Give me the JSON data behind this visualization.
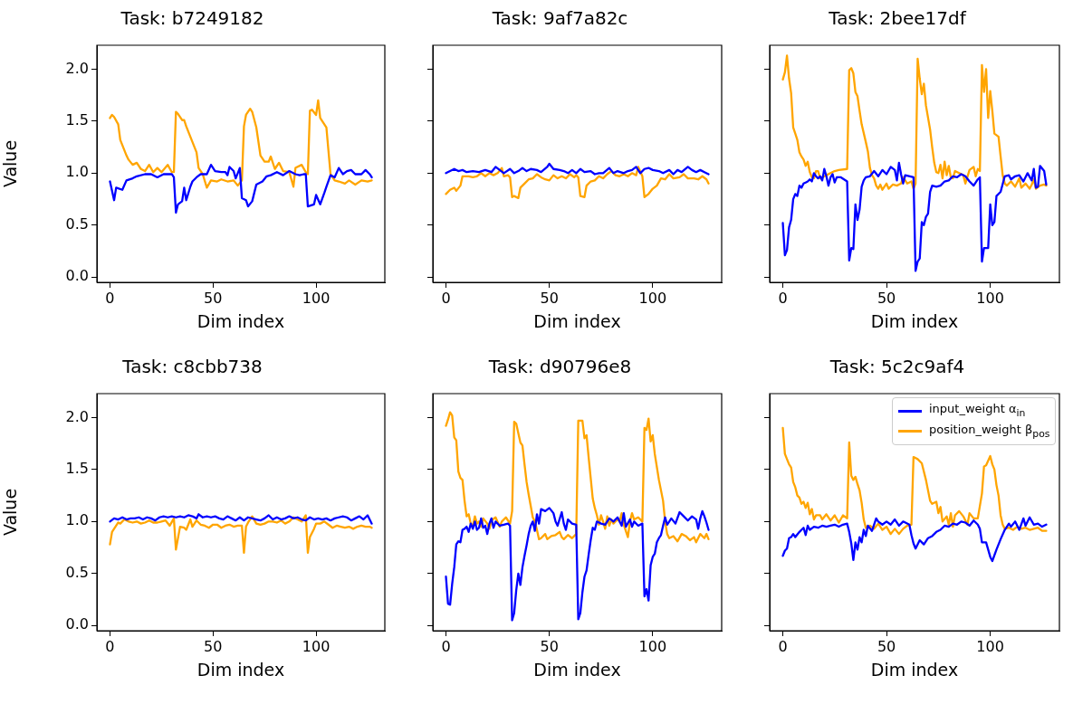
{
  "chart_data": [
    {
      "type": "line",
      "title": "Task: b7249182",
      "xlabel": "Dim index",
      "ylabel": "Value",
      "xlim": [
        -6.35,
        133.35
      ],
      "xticks": [
        0,
        50,
        100
      ],
      "ylim": [
        -0.05,
        2.23
      ],
      "yticks": [
        {
          "value": 0,
          "label": "0.0"
        },
        {
          "value": 0.5,
          "label": "0.5"
        },
        {
          "value": 1,
          "label": "1.0"
        },
        {
          "value": 1.5,
          "label": "1.5"
        },
        {
          "value": 2,
          "label": "2.0"
        }
      ],
      "grid": false,
      "legend": false,
      "series": [
        {
          "color": "#0000ff",
          "x": [
            0,
            2,
            3,
            6,
            8,
            11,
            13,
            17,
            20,
            23,
            26,
            30,
            31,
            32,
            33,
            35,
            36,
            37,
            39,
            40,
            42,
            44,
            47,
            49,
            51,
            54,
            56,
            57,
            58,
            60,
            61,
            63,
            64,
            66,
            67,
            69,
            71,
            74,
            76,
            78,
            81,
            84,
            87,
            90,
            92,
            94,
            95,
            96,
            99,
            100,
            102,
            104,
            105,
            107,
            109,
            111,
            113,
            115,
            117,
            119,
            122,
            124,
            126,
            127
          ],
          "values": [
            0.92,
            0.74,
            0.86,
            0.84,
            0.93,
            0.95,
            0.97,
            0.99,
            0.99,
            0.96,
            0.99,
            0.99,
            0.96,
            0.62,
            0.7,
            0.73,
            0.86,
            0.74,
            0.87,
            0.92,
            0.96,
            0.99,
            0.99,
            1.08,
            1.02,
            1.01,
            1.01,
            0.98,
            1.06,
            1.02,
            0.95,
            1.05,
            0.76,
            0.74,
            0.68,
            0.73,
            0.89,
            0.92,
            0.97,
            0.98,
            1.01,
            0.98,
            1.02,
            0.99,
            0.98,
            0.99,
            0.99,
            0.68,
            0.7,
            0.79,
            0.7,
            0.81,
            0.87,
            0.98,
            0.96,
            1.05,
            0.99,
            1.02,
            1.03,
            0.99,
            0.99,
            1.03,
            0.99,
            0.96
          ]
        },
        {
          "color": "#ffa500",
          "x": [
            0,
            1,
            2,
            4,
            5,
            6,
            8,
            9,
            11,
            13,
            15,
            17,
            19,
            21,
            23,
            25,
            28,
            30,
            31,
            32,
            33,
            35,
            36,
            37,
            39,
            40,
            42,
            43,
            45,
            47,
            49,
            52,
            54,
            57,
            60,
            62,
            64,
            65,
            66,
            68,
            69,
            71,
            73,
            75,
            77,
            78,
            80,
            82,
            84,
            87,
            89,
            90,
            93,
            95,
            96,
            97,
            98,
            100,
            101,
            102,
            103,
            105,
            107,
            109,
            111,
            114,
            116,
            119,
            122,
            125,
            127
          ],
          "values": [
            1.53,
            1.56,
            1.54,
            1.47,
            1.32,
            1.27,
            1.17,
            1.13,
            1.08,
            1.1,
            1.04,
            1.02,
            1.08,
            1.01,
            1.05,
            1.01,
            1.08,
            1.01,
            1.01,
            1.59,
            1.57,
            1.51,
            1.51,
            1.45,
            1.35,
            1.3,
            1.2,
            1.05,
            0.99,
            0.86,
            0.93,
            0.92,
            0.94,
            0.92,
            0.93,
            0.88,
            0.93,
            1.45,
            1.56,
            1.62,
            1.59,
            1.44,
            1.17,
            1.11,
            1.11,
            1.16,
            1.04,
            1.1,
            1.02,
            1.01,
            0.87,
            1.05,
            1.08,
            1.01,
            0.99,
            1.6,
            1.61,
            1.56,
            1.7,
            1.53,
            1.5,
            1.44,
            0.99,
            0.93,
            0.92,
            0.9,
            0.93,
            0.89,
            0.93,
            0.92,
            0.93
          ]
        }
      ]
    },
    {
      "type": "line",
      "title": "Task: 9af7a82c",
      "xlabel": "Dim index",
      "xlim": [
        -6.35,
        133.35
      ],
      "xticks": [
        0,
        50,
        100
      ],
      "ylim": [
        -0.05,
        2.23
      ],
      "yticks": [
        {
          "value": 0,
          "label": null
        },
        {
          "value": 0.5,
          "label": null
        },
        {
          "value": 1,
          "label": null
        },
        {
          "value": 1.5,
          "label": null
        },
        {
          "value": 2,
          "label": null
        }
      ],
      "tick_labels": "x",
      "grid": false,
      "legend": false,
      "series": [
        {
          "color": "#0000ff",
          "x": [
            0,
            2,
            4,
            6,
            8,
            10,
            13,
            16,
            19,
            22,
            24,
            26,
            28,
            31,
            33,
            35,
            37,
            39,
            41,
            44,
            46,
            49,
            50,
            52,
            55,
            57,
            59,
            61,
            63,
            65,
            67,
            70,
            72,
            74,
            76,
            79,
            81,
            83,
            86,
            88,
            90,
            92,
            94,
            96,
            98,
            100,
            103,
            105,
            108,
            110,
            112,
            114,
            117,
            119,
            121,
            123,
            125,
            127
          ],
          "values": [
            1.0,
            1.02,
            1.04,
            1.02,
            1.03,
            1.01,
            1.02,
            1.01,
            1.03,
            1.01,
            1.06,
            1.03,
            1.0,
            1.04,
            1.0,
            1.02,
            1.05,
            1.02,
            1.04,
            1.03,
            1.01,
            1.06,
            1.09,
            1.04,
            1.03,
            1.02,
            1.0,
            1.03,
            1.0,
            1.04,
            1.01,
            1.02,
            0.99,
            1.0,
            1.0,
            1.05,
            1.0,
            1.02,
            1.0,
            1.02,
            1.03,
            1.06,
            1.0,
            1.04,
            1.05,
            1.03,
            1.02,
            1.0,
            1.03,
            0.99,
            1.03,
            1.01,
            1.06,
            1.03,
            1.01,
            1.03,
            1.01,
            0.99
          ]
        },
        {
          "color": "#ffa500",
          "x": [
            0,
            2,
            4,
            5,
            7,
            8,
            11,
            13,
            15,
            17,
            19,
            21,
            23,
            25,
            27,
            28,
            30,
            31,
            32,
            33,
            35,
            36,
            38,
            40,
            42,
            44,
            46,
            48,
            50,
            52,
            54,
            56,
            58,
            60,
            62,
            63,
            64,
            65,
            67,
            68,
            70,
            72,
            74,
            76,
            78,
            80,
            82,
            84,
            86,
            88,
            90,
            92,
            93,
            95,
            96,
            98,
            100,
            102,
            104,
            106,
            108,
            110,
            113,
            115,
            117,
            120,
            122,
            124,
            126,
            127
          ],
          "values": [
            0.8,
            0.84,
            0.86,
            0.83,
            0.88,
            0.97,
            0.97,
            0.96,
            0.97,
            1.0,
            0.97,
            1.0,
            0.98,
            1.0,
            1.05,
            0.97,
            0.98,
            0.96,
            0.77,
            0.78,
            0.76,
            0.86,
            0.9,
            0.94,
            0.95,
            0.99,
            0.96,
            0.94,
            0.93,
            0.98,
            0.95,
            0.97,
            0.95,
            0.99,
            0.96,
            0.98,
            0.96,
            0.78,
            0.77,
            0.88,
            0.92,
            0.93,
            0.97,
            0.95,
            0.99,
            1.02,
            0.98,
            0.97,
            0.99,
            0.97,
            1.0,
            0.98,
            1.06,
            0.97,
            0.77,
            0.8,
            0.85,
            0.88,
            0.95,
            0.94,
            0.99,
            0.95,
            0.96,
            0.99,
            0.95,
            0.95,
            0.94,
            0.97,
            0.94,
            0.9
          ]
        }
      ]
    },
    {
      "type": "line",
      "title": "Task: 2bee17df",
      "xlabel": "Dim index",
      "xlim": [
        -6.35,
        133.35
      ],
      "xticks": [
        0,
        50,
        100
      ],
      "ylim": [
        -0.05,
        2.23
      ],
      "yticks": [
        {
          "value": 0,
          "label": null
        },
        {
          "value": 0.5,
          "label": null
        },
        {
          "value": 1,
          "label": null
        },
        {
          "value": 1.5,
          "label": null
        },
        {
          "value": 2,
          "label": null
        }
      ],
      "tick_labels": "x",
      "grid": false,
      "legend": false,
      "series": [
        {
          "color": "#0000ff",
          "x": [
            0,
            1,
            2,
            3,
            4,
            5,
            6,
            7,
            8,
            9,
            10,
            11,
            12,
            13,
            14,
            15,
            16,
            17,
            18,
            19,
            20,
            21,
            22,
            23,
            24,
            25,
            26,
            28,
            31,
            32,
            33,
            34,
            35,
            36,
            37,
            38,
            39,
            40,
            42,
            44,
            46,
            48,
            50,
            52,
            54,
            55,
            56,
            57,
            58,
            59,
            63,
            64,
            65,
            66,
            67,
            68,
            69,
            70,
            71,
            72,
            74,
            76,
            78,
            80,
            82,
            84,
            86,
            88,
            90,
            92,
            94,
            95,
            96,
            97,
            99,
            100,
            101,
            102,
            103,
            105,
            107,
            109,
            110,
            112,
            114,
            116,
            118,
            120,
            121,
            122,
            123,
            124,
            126,
            127
          ],
          "values": [
            0.52,
            0.21,
            0.26,
            0.48,
            0.55,
            0.75,
            0.8,
            0.78,
            0.88,
            0.86,
            0.9,
            0.91,
            0.92,
            0.94,
            0.92,
            1.0,
            0.97,
            0.95,
            0.97,
            0.93,
            1.04,
            0.97,
            0.88,
            0.96,
            0.99,
            0.91,
            0.96,
            0.96,
            0.92,
            0.16,
            0.28,
            0.27,
            0.7,
            0.55,
            0.65,
            0.87,
            0.93,
            0.96,
            0.97,
            1.02,
            0.97,
            1.03,
            0.99,
            1.06,
            1.03,
            0.93,
            1.1,
            0.99,
            0.9,
            0.98,
            0.96,
            0.06,
            0.15,
            0.18,
            0.53,
            0.5,
            0.58,
            0.61,
            0.82,
            0.88,
            0.87,
            0.88,
            0.92,
            0.93,
            0.97,
            0.96,
            0.99,
            0.97,
            0.92,
            0.88,
            0.94,
            0.96,
            0.15,
            0.28,
            0.28,
            0.7,
            0.5,
            0.53,
            0.78,
            0.82,
            0.97,
            0.98,
            0.94,
            0.97,
            0.98,
            0.92,
            1.0,
            0.93,
            1.04,
            0.86,
            0.87,
            1.07,
            1.02,
            0.89
          ]
        },
        {
          "color": "#ffa500",
          "x": [
            0,
            1,
            2,
            3,
            4,
            5,
            6,
            7,
            8,
            9,
            10,
            11,
            12,
            13,
            14,
            15,
            16,
            17,
            18,
            19,
            21,
            23,
            25,
            27,
            31,
            32,
            33,
            34,
            35,
            36,
            37,
            38,
            40,
            41,
            42,
            43,
            44,
            45,
            46,
            47,
            48,
            50,
            51,
            53,
            55,
            57,
            58,
            60,
            62,
            63,
            64,
            65,
            66,
            67,
            68,
            69,
            71,
            72,
            73,
            74,
            75,
            76,
            77,
            78,
            79,
            80,
            81,
            82,
            83,
            85,
            87,
            88,
            90,
            92,
            93,
            94,
            95,
            96,
            97,
            98,
            99,
            100,
            101,
            102,
            104,
            105,
            106,
            107,
            108,
            110,
            112,
            114,
            115,
            117,
            119,
            120,
            121,
            122,
            124,
            126,
            127
          ],
          "values": [
            1.9,
            1.97,
            2.13,
            1.91,
            1.77,
            1.44,
            1.38,
            1.32,
            1.2,
            1.16,
            1.13,
            1.07,
            1.11,
            1.01,
            0.96,
            0.95,
            1.02,
            1.02,
            0.95,
            0.96,
            0.98,
            1.0,
            1.02,
            1.03,
            1.04,
            1.99,
            2.01,
            1.96,
            1.78,
            1.74,
            1.6,
            1.47,
            1.3,
            1.21,
            1.05,
            0.98,
            0.95,
            0.88,
            0.85,
            0.89,
            0.84,
            0.9,
            0.85,
            0.89,
            0.88,
            0.9,
            0.96,
            0.9,
            0.92,
            0.85,
            0.9,
            2.1,
            1.91,
            1.76,
            1.86,
            1.65,
            1.42,
            1.25,
            1.1,
            1.01,
            1.0,
            1.08,
            0.95,
            1.11,
            0.98,
            1.07,
            0.96,
            0.95,
            1.02,
            1.0,
            0.98,
            0.9,
            1.03,
            1.06,
            0.97,
            1.04,
            1.02,
            2.04,
            1.78,
            2.0,
            1.53,
            1.79,
            1.6,
            1.38,
            1.35,
            1.16,
            0.98,
            0.9,
            0.88,
            0.92,
            0.87,
            0.95,
            0.86,
            0.9,
            0.85,
            0.89,
            0.94,
            0.85,
            0.88,
            0.89,
            0.88
          ]
        }
      ]
    },
    {
      "type": "line",
      "title": "Task: c8cbb738",
      "xlabel": "Dim index",
      "ylabel": "Value",
      "xlim": [
        -6.35,
        133.35
      ],
      "xticks": [
        0,
        50,
        100
      ],
      "ylim": [
        -0.05,
        2.23
      ],
      "yticks": [
        {
          "value": 0,
          "label": "0.0"
        },
        {
          "value": 0.5,
          "label": "0.5"
        },
        {
          "value": 1,
          "label": "1.0"
        },
        {
          "value": 1.5,
          "label": "1.5"
        },
        {
          "value": 2,
          "label": "2.0"
        }
      ],
      "grid": false,
      "legend": false,
      "series": [
        {
          "color": "#0000ff",
          "x": [
            0,
            2,
            4,
            6,
            8,
            10,
            12,
            14,
            16,
            18,
            20,
            22,
            24,
            26,
            28,
            30,
            32,
            34,
            36,
            38,
            40,
            42,
            43,
            45,
            47,
            49,
            51,
            53,
            55,
            57,
            59,
            61,
            63,
            65,
            67,
            69,
            71,
            73,
            75,
            77,
            79,
            81,
            83,
            85,
            87,
            89,
            91,
            93,
            95,
            97,
            99,
            101,
            103,
            105,
            107,
            109,
            111,
            113,
            115,
            117,
            119,
            121,
            123,
            125,
            127
          ],
          "values": [
            1.0,
            1.03,
            1.02,
            1.04,
            1.02,
            1.03,
            1.03,
            1.04,
            1.02,
            1.04,
            1.03,
            1.01,
            1.04,
            1.05,
            1.04,
            1.05,
            1.04,
            1.05,
            1.04,
            1.06,
            1.05,
            1.03,
            1.07,
            1.04,
            1.05,
            1.04,
            1.05,
            1.03,
            1.02,
            1.05,
            1.03,
            1.01,
            1.04,
            1.01,
            1.04,
            1.03,
            1.02,
            1.01,
            1.03,
            1.06,
            1.02,
            1.04,
            1.02,
            1.03,
            1.05,
            1.03,
            1.04,
            1.02,
            1.01,
            1.04,
            1.02,
            1.03,
            1.02,
            1.03,
            1.01,
            1.03,
            1.04,
            1.05,
            1.04,
            1.01,
            1.03,
            1.05,
            1.02,
            1.06,
            0.98
          ]
        },
        {
          "color": "#ffa500",
          "x": [
            0,
            1,
            2,
            3,
            4,
            5,
            7,
            9,
            11,
            13,
            15,
            17,
            19,
            21,
            23,
            25,
            27,
            29,
            31,
            32,
            34,
            36,
            37,
            39,
            40,
            42,
            44,
            46,
            48,
            50,
            52,
            54,
            56,
            58,
            60,
            62,
            64,
            65,
            66,
            67,
            69,
            71,
            73,
            75,
            77,
            79,
            81,
            83,
            85,
            87,
            89,
            91,
            93,
            95,
            96,
            97,
            99,
            100,
            102,
            104,
            106,
            108,
            110,
            112,
            114,
            116,
            118,
            120,
            122,
            124,
            126,
            127
          ],
          "values": [
            0.78,
            0.9,
            0.93,
            0.96,
            0.99,
            0.98,
            1.02,
            1.0,
            0.99,
            1.0,
            0.98,
            0.99,
            1.01,
            0.99,
            0.99,
            1.0,
            1.01,
            0.96,
            1.03,
            0.73,
            0.95,
            0.94,
            0.92,
            1.02,
            0.95,
            1.01,
            0.97,
            0.96,
            0.94,
            0.97,
            0.97,
            0.94,
            0.96,
            0.97,
            0.95,
            0.96,
            0.96,
            0.7,
            0.95,
            0.99,
            1.05,
            0.98,
            0.97,
            0.98,
            1.0,
            1.0,
            0.99,
            1.01,
            0.98,
            1.0,
            1.04,
            1.02,
            1.0,
            1.06,
            0.7,
            0.85,
            0.93,
            0.98,
            0.98,
            1.0,
            0.97,
            0.94,
            0.96,
            0.95,
            0.94,
            0.95,
            0.93,
            0.95,
            0.96,
            0.95,
            0.95,
            0.94
          ]
        }
      ]
    },
    {
      "type": "line",
      "title": "Task: d90796e8",
      "xlabel": "Dim index",
      "xlim": [
        -6.35,
        133.35
      ],
      "xticks": [
        0,
        50,
        100
      ],
      "ylim": [
        -0.05,
        2.23
      ],
      "yticks": [
        {
          "value": 0,
          "label": null
        },
        {
          "value": 0.5,
          "label": null
        },
        {
          "value": 1,
          "label": null
        },
        {
          "value": 1.5,
          "label": null
        },
        {
          "value": 2,
          "label": null
        }
      ],
      "tick_labels": "x",
      "grid": false,
      "legend": false,
      "series": [
        {
          "color": "#0000ff",
          "x": [
            0,
            1,
            2,
            3,
            4,
            5,
            6,
            7,
            8,
            9,
            10,
            11,
            12,
            13,
            14,
            15,
            16,
            17,
            18,
            19,
            20,
            21,
            22,
            23,
            24,
            26,
            28,
            30,
            31,
            32,
            33,
            34,
            35,
            36,
            37,
            38,
            39,
            40,
            41,
            42,
            43,
            44,
            45,
            46,
            48,
            50,
            52,
            53,
            54,
            56,
            57,
            58,
            59,
            61,
            63,
            64,
            65,
            66,
            67,
            68,
            69,
            70,
            71,
            72,
            73,
            75,
            77,
            79,
            81,
            83,
            85,
            86,
            87,
            89,
            90,
            91,
            93,
            95,
            96,
            97,
            98,
            99,
            100,
            101,
            102,
            103,
            104,
            105,
            106,
            107,
            109,
            111,
            113,
            115,
            117,
            119,
            121,
            122,
            123,
            124,
            125,
            126,
            127
          ],
          "values": [
            0.47,
            0.21,
            0.2,
            0.4,
            0.56,
            0.78,
            0.81,
            0.8,
            0.92,
            0.93,
            0.95,
            0.9,
            0.98,
            0.93,
            1.0,
            0.92,
            0.94,
            1.03,
            0.94,
            0.96,
            0.88,
            0.98,
            1.03,
            0.94,
            1.0,
            0.96,
            0.97,
            0.98,
            0.96,
            0.05,
            0.12,
            0.34,
            0.5,
            0.39,
            0.56,
            0.67,
            0.77,
            0.88,
            0.96,
            1.0,
            0.91,
            1.07,
            0.98,
            1.12,
            1.1,
            1.13,
            1.08,
            1.0,
            0.96,
            1.09,
            0.98,
            0.92,
            1.02,
            0.98,
            0.97,
            0.06,
            0.12,
            0.32,
            0.47,
            0.53,
            0.68,
            0.82,
            0.94,
            0.92,
            1.0,
            0.98,
            0.97,
            1.03,
            1.0,
            1.04,
            0.96,
            1.08,
            0.95,
            1.02,
            0.95,
            1.0,
            0.96,
            0.98,
            0.28,
            0.35,
            0.24,
            0.58,
            0.66,
            0.69,
            0.8,
            0.84,
            0.87,
            0.96,
            1.04,
            0.97,
            1.03,
            0.98,
            1.09,
            1.05,
            1.01,
            1.05,
            1.02,
            0.93,
            1.03,
            1.1,
            1.05,
            0.99,
            0.92
          ]
        },
        {
          "color": "#ffa500",
          "x": [
            0,
            1,
            2,
            3,
            4,
            5,
            6,
            7,
            8,
            9,
            10,
            11,
            12,
            13,
            14,
            15,
            16,
            17,
            18,
            20,
            21,
            22,
            24,
            26,
            27,
            29,
            31,
            32,
            33,
            34,
            35,
            36,
            37,
            38,
            39,
            40,
            42,
            43,
            44,
            45,
            46,
            48,
            49,
            51,
            53,
            55,
            56,
            57,
            59,
            61,
            63,
            64,
            66,
            67,
            68,
            69,
            70,
            71,
            72,
            73,
            74,
            75,
            76,
            77,
            78,
            79,
            80,
            81,
            83,
            84,
            85,
            86,
            88,
            89,
            90,
            91,
            93,
            95,
            96,
            97,
            98,
            99,
            100,
            101,
            103,
            104,
            105,
            106,
            107,
            108,
            110,
            112,
            114,
            116,
            118,
            120,
            121,
            123,
            125,
            126,
            127
          ],
          "values": [
            1.92,
            1.98,
            2.05,
            2.02,
            1.81,
            1.78,
            1.48,
            1.42,
            1.4,
            1.2,
            1.05,
            1.07,
            0.98,
            0.96,
            1.05,
            0.98,
            1.0,
            0.95,
            1.03,
            0.98,
            0.93,
            1.01,
            1.04,
            0.95,
            1.0,
            1.04,
            0.98,
            1.1,
            1.96,
            1.94,
            1.85,
            1.76,
            1.73,
            1.55,
            1.38,
            1.26,
            1.04,
            1.0,
            0.92,
            0.83,
            0.84,
            0.88,
            0.83,
            0.86,
            0.87,
            0.9,
            0.85,
            0.83,
            0.87,
            0.84,
            0.88,
            1.97,
            1.97,
            1.8,
            1.83,
            1.62,
            1.42,
            1.22,
            1.13,
            1.06,
            0.97,
            1.06,
            1.0,
            0.93,
            1.05,
            0.96,
            1.02,
            0.98,
            1.02,
            1.0,
            1.08,
            0.97,
            0.85,
            1.0,
            1.08,
            1.02,
            1.04,
            1.0,
            1.9,
            1.88,
            1.99,
            1.77,
            1.83,
            1.65,
            1.4,
            1.3,
            1.2,
            1.0,
            0.88,
            0.84,
            0.86,
            0.81,
            0.88,
            0.86,
            0.82,
            0.85,
            0.8,
            0.88,
            0.84,
            0.88,
            0.83
          ]
        }
      ]
    },
    {
      "type": "line",
      "title": "Task: 5c2c9af4",
      "xlabel": "Dim index",
      "xlim": [
        -6.35,
        133.35
      ],
      "xticks": [
        0,
        50,
        100
      ],
      "ylim": [
        -0.05,
        2.23
      ],
      "yticks": [
        {
          "value": 0,
          "label": null
        },
        {
          "value": 0.5,
          "label": null
        },
        {
          "value": 1,
          "label": null
        },
        {
          "value": 1.5,
          "label": null
        },
        {
          "value": 2,
          "label": null
        }
      ],
      "tick_labels": "x",
      "grid": false,
      "legend": "top right",
      "series": [
        {
          "name": "input_weight α$_{in}$",
          "color": "#0000ff",
          "x": [
            0,
            1,
            2,
            3,
            4,
            5,
            6,
            8,
            9,
            10,
            11,
            12,
            13,
            15,
            17,
            19,
            21,
            23,
            25,
            27,
            29,
            31,
            32,
            33,
            34,
            35,
            36,
            37,
            38,
            39,
            40,
            41,
            43,
            45,
            46,
            48,
            50,
            52,
            54,
            56,
            58,
            61,
            62,
            63,
            64,
            66,
            68,
            70,
            72,
            74,
            76,
            78,
            80,
            82,
            84,
            86,
            88,
            90,
            92,
            94,
            95,
            96,
            98,
            100,
            101,
            103,
            105,
            107,
            109,
            110,
            112,
            114,
            116,
            117,
            119,
            121,
            123,
            125,
            127
          ],
          "values": [
            0.67,
            0.72,
            0.74,
            0.84,
            0.85,
            0.88,
            0.85,
            0.9,
            0.92,
            0.94,
            0.87,
            0.96,
            0.92,
            0.95,
            0.94,
            0.96,
            0.95,
            0.96,
            0.97,
            0.95,
            0.97,
            0.98,
            0.9,
            0.79,
            0.63,
            0.8,
            0.73,
            0.85,
            0.8,
            0.92,
            0.86,
            0.96,
            0.91,
            1.03,
            1.0,
            0.97,
            1.0,
            0.97,
            1.02,
            0.96,
            1.0,
            0.97,
            0.87,
            0.79,
            0.74,
            0.82,
            0.78,
            0.84,
            0.86,
            0.9,
            0.92,
            0.96,
            0.95,
            0.98,
            0.97,
            1.0,
            0.99,
            0.96,
            1.01,
            0.97,
            0.93,
            0.8,
            0.8,
            0.66,
            0.62,
            0.73,
            0.83,
            0.92,
            0.98,
            0.95,
            1.0,
            0.92,
            1.03,
            0.96,
            1.04,
            0.97,
            0.98,
            0.95,
            0.97
          ]
        },
        {
          "name": "position_weight β$_{pos}$",
          "color": "#ffa500",
          "x": [
            0,
            1,
            2,
            3,
            4,
            5,
            6,
            7,
            8,
            9,
            10,
            11,
            12,
            13,
            14,
            15,
            16,
            18,
            19,
            21,
            23,
            25,
            27,
            29,
            31,
            32,
            33,
            34,
            35,
            36,
            37,
            38,
            39,
            40,
            42,
            44,
            46,
            48,
            50,
            52,
            54,
            56,
            58,
            60,
            62,
            63,
            65,
            67,
            69,
            71,
            72,
            74,
            75,
            76,
            77,
            79,
            80,
            81,
            82,
            83,
            85,
            87,
            89,
            90,
            92,
            94,
            96,
            97,
            98,
            100,
            101,
            102,
            103,
            104,
            105,
            106,
            107,
            109,
            111,
            113,
            115,
            117,
            119,
            121,
            123,
            125,
            127
          ],
          "values": [
            1.9,
            1.65,
            1.6,
            1.55,
            1.52,
            1.38,
            1.33,
            1.25,
            1.23,
            1.17,
            1.19,
            1.13,
            1.18,
            1.07,
            1.12,
            1.02,
            1.06,
            1.06,
            1.02,
            1.07,
            1.01,
            1.06,
            0.99,
            1.06,
            1.03,
            1.76,
            1.44,
            1.4,
            1.43,
            1.36,
            1.3,
            1.18,
            1.02,
            0.94,
            0.96,
            0.93,
            0.98,
            0.92,
            0.95,
            0.88,
            0.93,
            0.88,
            0.93,
            0.96,
            0.97,
            1.62,
            1.6,
            1.56,
            1.4,
            1.2,
            1.17,
            1.19,
            1.08,
            1.14,
            1.0,
            1.05,
            0.97,
            1.08,
            0.95,
            1.06,
            1.1,
            1.05,
            0.97,
            1.08,
            1.03,
            1.03,
            1.27,
            1.53,
            1.54,
            1.63,
            1.55,
            1.5,
            1.35,
            1.25,
            1.06,
            0.97,
            0.93,
            0.94,
            0.92,
            0.95,
            0.93,
            0.94,
            0.92,
            0.93,
            0.94,
            0.91,
            0.91
          ]
        }
      ]
    }
  ]
}
